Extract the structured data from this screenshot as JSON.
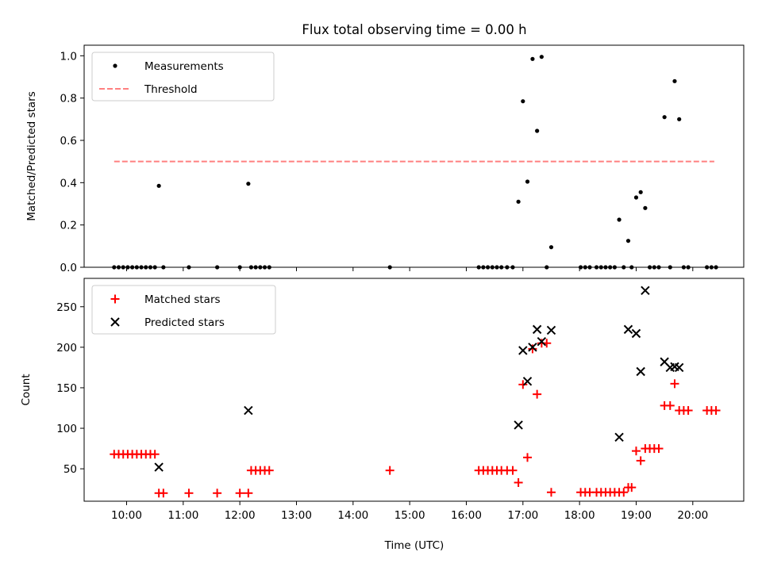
{
  "chart_data": {
    "type": "scatter",
    "title": "Flux total observing time = 0.00 h",
    "xlabel": "Time (UTC)",
    "x_unit": "hours UTC",
    "xlim": [
      9.25,
      20.9
    ],
    "x_ticks": [
      {
        "value": 10,
        "label": "10:00"
      },
      {
        "value": 11,
        "label": "11:00"
      },
      {
        "value": 12,
        "label": "12:00"
      },
      {
        "value": 13,
        "label": "13:00"
      },
      {
        "value": 14,
        "label": "14:00"
      },
      {
        "value": 15,
        "label": "15:00"
      },
      {
        "value": 16,
        "label": "16:00"
      },
      {
        "value": 17,
        "label": "17:00"
      },
      {
        "value": 18,
        "label": "18:00"
      },
      {
        "value": 19,
        "label": "19:00"
      },
      {
        "value": 20,
        "label": "20:00"
      }
    ],
    "panels": [
      {
        "id": "ratio",
        "ylabel": "Matched/Predicted stars",
        "ylim": [
          0,
          1.05
        ],
        "yticks": [
          0.0,
          0.2,
          0.4,
          0.6,
          0.8,
          1.0
        ],
        "ytick_labels": [
          "0.0",
          "0.2",
          "0.4",
          "0.6",
          "0.8",
          "1.0"
        ],
        "legend_position": "upper-left",
        "series": [
          {
            "name": "Measurements",
            "marker": "dot",
            "color": "#000000",
            "points": [
              [
                9.78,
                0
              ],
              [
                9.86,
                0
              ],
              [
                9.94,
                0
              ],
              [
                10.02,
                0
              ],
              [
                10.1,
                0
              ],
              [
                10.18,
                0
              ],
              [
                10.26,
                0
              ],
              [
                10.34,
                0
              ],
              [
                10.42,
                0
              ],
              [
                10.5,
                0
              ],
              [
                10.57,
                0.385
              ],
              [
                10.65,
                0
              ],
              [
                11.1,
                0
              ],
              [
                11.6,
                0
              ],
              [
                12.0,
                0
              ],
              [
                12.15,
                0.395
              ],
              [
                12.2,
                0
              ],
              [
                12.28,
                0
              ],
              [
                12.36,
                0
              ],
              [
                12.44,
                0
              ],
              [
                12.52,
                0
              ],
              [
                14.65,
                0
              ],
              [
                16.22,
                0
              ],
              [
                16.3,
                0
              ],
              [
                16.38,
                0
              ],
              [
                16.46,
                0
              ],
              [
                16.54,
                0
              ],
              [
                16.62,
                0
              ],
              [
                16.72,
                0
              ],
              [
                16.82,
                0
              ],
              [
                16.92,
                0.31
              ],
              [
                17.0,
                0.785
              ],
              [
                17.08,
                0.405
              ],
              [
                17.17,
                0.985
              ],
              [
                17.25,
                0.645
              ],
              [
                17.33,
                0.995
              ],
              [
                17.42,
                0
              ],
              [
                17.5,
                0.095
              ],
              [
                18.02,
                0
              ],
              [
                18.1,
                0
              ],
              [
                18.18,
                0
              ],
              [
                18.3,
                0
              ],
              [
                18.38,
                0
              ],
              [
                18.46,
                0
              ],
              [
                18.54,
                0
              ],
              [
                18.62,
                0
              ],
              [
                18.7,
                0.225
              ],
              [
                18.78,
                0
              ],
              [
                18.86,
                0.125
              ],
              [
                18.92,
                0
              ],
              [
                19.0,
                0.33
              ],
              [
                19.08,
                0.355
              ],
              [
                19.16,
                0.28
              ],
              [
                19.24,
                0
              ],
              [
                19.32,
                0
              ],
              [
                19.4,
                0
              ],
              [
                19.5,
                0.71
              ],
              [
                19.6,
                0
              ],
              [
                19.68,
                0.88
              ],
              [
                19.76,
                0.7
              ],
              [
                19.84,
                0
              ],
              [
                19.92,
                0
              ],
              [
                20.25,
                0
              ],
              [
                20.33,
                0
              ],
              [
                20.41,
                0
              ]
            ]
          },
          {
            "name": "Threshold",
            "marker": "dashed-line",
            "color": "#ff8080",
            "points": [
              [
                9.78,
                0.5
              ],
              [
                20.38,
                0.5
              ]
            ]
          }
        ]
      },
      {
        "id": "count",
        "ylabel": "Count",
        "ylim": [
          10,
          285
        ],
        "yticks": [
          50,
          100,
          150,
          200,
          250
        ],
        "ytick_labels": [
          "50",
          "100",
          "150",
          "200",
          "250"
        ],
        "legend_position": "upper-left",
        "series": [
          {
            "name": "Matched stars",
            "marker": "plus",
            "color": "#ff0000",
            "points": [
              [
                9.78,
                68
              ],
              [
                9.86,
                68
              ],
              [
                9.94,
                68
              ],
              [
                10.02,
                68
              ],
              [
                10.1,
                68
              ],
              [
                10.18,
                68
              ],
              [
                10.26,
                68
              ],
              [
                10.34,
                68
              ],
              [
                10.42,
                68
              ],
              [
                10.5,
                68
              ],
              [
                10.57,
                20
              ],
              [
                10.65,
                20
              ],
              [
                11.1,
                20
              ],
              [
                11.6,
                20
              ],
              [
                12.0,
                20
              ],
              [
                12.15,
                20
              ],
              [
                12.2,
                48
              ],
              [
                12.28,
                48
              ],
              [
                12.36,
                48
              ],
              [
                12.44,
                48
              ],
              [
                12.52,
                48
              ],
              [
                14.65,
                48
              ],
              [
                16.22,
                48
              ],
              [
                16.3,
                48
              ],
              [
                16.38,
                48
              ],
              [
                16.46,
                48
              ],
              [
                16.54,
                48
              ],
              [
                16.62,
                48
              ],
              [
                16.72,
                48
              ],
              [
                16.82,
                48
              ],
              [
                16.92,
                33
              ],
              [
                17.0,
                154
              ],
              [
                17.08,
                64
              ],
              [
                17.17,
                198
              ],
              [
                17.25,
                142
              ],
              [
                17.33,
                205
              ],
              [
                17.42,
                205
              ],
              [
                17.5,
                21
              ],
              [
                18.02,
                21
              ],
              [
                18.1,
                21
              ],
              [
                18.18,
                21
              ],
              [
                18.3,
                21
              ],
              [
                18.38,
                21
              ],
              [
                18.46,
                21
              ],
              [
                18.54,
                21
              ],
              [
                18.62,
                21
              ],
              [
                18.7,
                21
              ],
              [
                18.78,
                21
              ],
              [
                18.86,
                27
              ],
              [
                18.92,
                27
              ],
              [
                19.0,
                72
              ],
              [
                19.08,
                60
              ],
              [
                19.16,
                75
              ],
              [
                19.24,
                75
              ],
              [
                19.32,
                75
              ],
              [
                19.4,
                75
              ],
              [
                19.5,
                128
              ],
              [
                19.6,
                128
              ],
              [
                19.68,
                155
              ],
              [
                19.76,
                122
              ],
              [
                19.84,
                122
              ],
              [
                19.92,
                122
              ],
              [
                20.25,
                122
              ],
              [
                20.33,
                122
              ],
              [
                20.41,
                122
              ]
            ]
          },
          {
            "name": "Predicted stars",
            "marker": "x",
            "color": "#000000",
            "points": [
              [
                10.57,
                52
              ],
              [
                12.15,
                122
              ],
              [
                16.92,
                104
              ],
              [
                17.0,
                196
              ],
              [
                17.08,
                158
              ],
              [
                17.17,
                200
              ],
              [
                17.25,
                222
              ],
              [
                17.33,
                207
              ],
              [
                17.5,
                221
              ],
              [
                18.7,
                89
              ],
              [
                18.86,
                222
              ],
              [
                19.0,
                217
              ],
              [
                19.08,
                170
              ],
              [
                19.16,
                270
              ],
              [
                19.5,
                182
              ],
              [
                19.6,
                175
              ],
              [
                19.68,
                176
              ],
              [
                19.76,
                175
              ]
            ]
          }
        ]
      }
    ]
  }
}
